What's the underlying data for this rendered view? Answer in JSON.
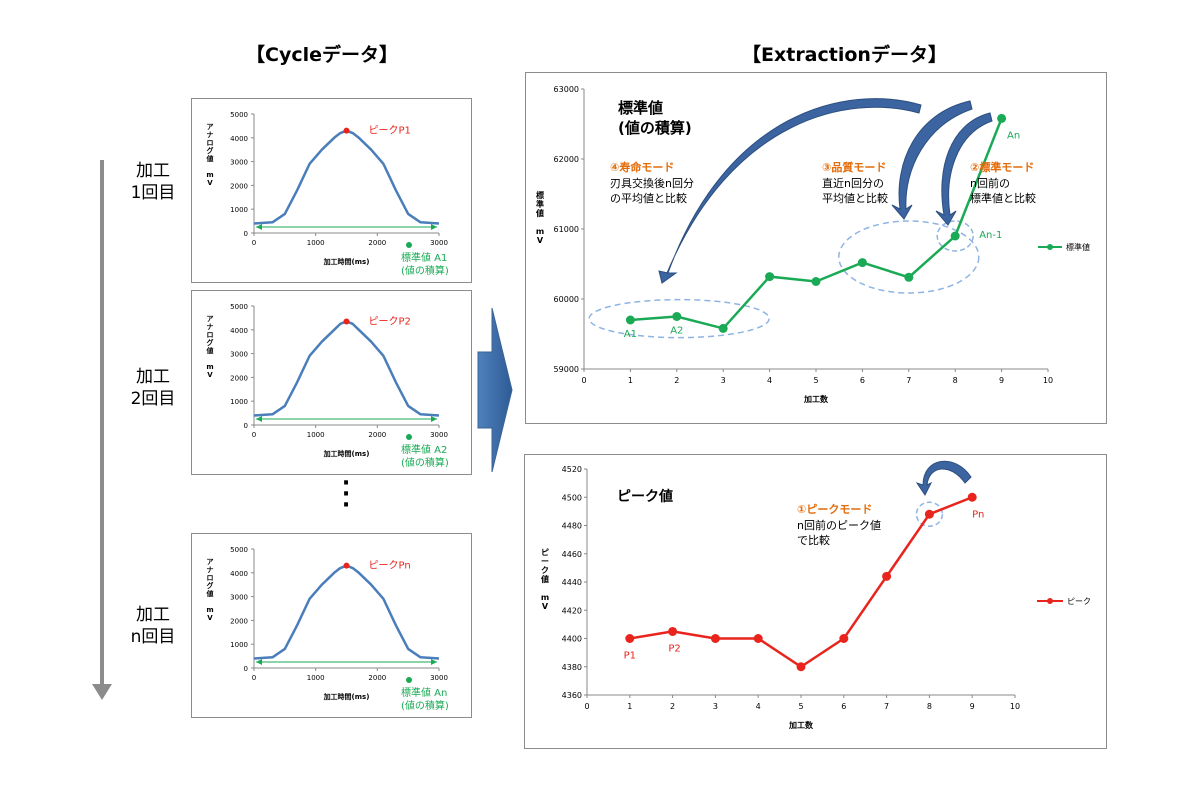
{
  "headers": {
    "cycle": "【Cycleデータ】",
    "extraction": "【Extractionデータ】"
  },
  "left_labels": [
    {
      "line1": "加工",
      "line2": "1回目"
    },
    {
      "line1": "加工",
      "line2": "2回目"
    },
    {
      "line1": "加工",
      "line2": "n回目"
    }
  ],
  "ellipsis": "⋮",
  "colors": {
    "cycle_line": "#4a7ebb",
    "std_line": "#1aaa55",
    "peak_line": "#e8241c",
    "mode_text": "#e46c0a",
    "arrow": "#3c64a0",
    "dashed": "#8fb4e3"
  },
  "chart_data": [
    {
      "id": "cycle1",
      "type": "line",
      "ylabel": "アナログ値 mV",
      "xlabel": "加工時間(ms)",
      "xlim": [
        0,
        3000
      ],
      "ylim": [
        0,
        5000
      ],
      "xticks": [
        0,
        1000,
        2000,
        3000
      ],
      "yticks": [
        0,
        1000,
        2000,
        3000,
        4000,
        5000
      ],
      "x": [
        0,
        300,
        500,
        700,
        900,
        1100,
        1300,
        1400,
        1500,
        1600,
        1700,
        1900,
        2100,
        2300,
        2500,
        2700,
        3000
      ],
      "y": [
        400,
        450,
        800,
        1800,
        2900,
        3500,
        4000,
        4200,
        4300,
        4200,
        4000,
        3500,
        2900,
        1800,
        800,
        450,
        400
      ],
      "peak_label": "ピークP1",
      "std_label": "標準値 A1",
      "std_note": "(値の積算)"
    },
    {
      "id": "cycle2",
      "type": "line",
      "ylabel": "アナログ値 mV",
      "xlabel": "加工時間(ms)",
      "xlim": [
        0,
        3000
      ],
      "ylim": [
        0,
        5000
      ],
      "xticks": [
        0,
        1000,
        2000,
        3000
      ],
      "yticks": [
        0,
        1000,
        2000,
        3000,
        4000,
        5000
      ],
      "x": [
        0,
        300,
        500,
        700,
        900,
        1100,
        1300,
        1400,
        1500,
        1600,
        1700,
        1900,
        2100,
        2300,
        2500,
        2700,
        3000
      ],
      "y": [
        400,
        450,
        800,
        1800,
        2900,
        3500,
        4000,
        4250,
        4350,
        4250,
        4000,
        3500,
        2900,
        1800,
        800,
        450,
        400
      ],
      "peak_label": "ピークP2",
      "std_label": "標準値 A2",
      "std_note": "(値の積算)"
    },
    {
      "id": "cyclen",
      "type": "line",
      "ylabel": "アナログ値 mV",
      "xlabel": "加工時間(ms)",
      "xlim": [
        0,
        3000
      ],
      "ylim": [
        0,
        5000
      ],
      "xticks": [
        0,
        1000,
        2000,
        3000
      ],
      "yticks": [
        0,
        1000,
        2000,
        3000,
        4000,
        5000
      ],
      "x": [
        0,
        300,
        500,
        700,
        900,
        1100,
        1300,
        1400,
        1500,
        1600,
        1700,
        1900,
        2100,
        2300,
        2500,
        2700,
        3000
      ],
      "y": [
        400,
        450,
        800,
        1800,
        2900,
        3500,
        4000,
        4200,
        4300,
        4200,
        4000,
        3500,
        2900,
        1800,
        800,
        450,
        400
      ],
      "peak_label": "ピークPn",
      "std_label": "標準値 An",
      "std_note": "(値の積算)"
    },
    {
      "id": "standard",
      "type": "line",
      "title": "標準値",
      "subtitle": "(値の積算)",
      "ylabel": "標準値 mV",
      "xlabel": "加工数",
      "xlim": [
        0,
        10
      ],
      "ylim": [
        59000,
        63000
      ],
      "xticks": [
        0,
        1,
        2,
        3,
        4,
        5,
        6,
        7,
        8,
        9,
        10
      ],
      "yticks": [
        59000,
        60000,
        61000,
        62000,
        63000
      ],
      "x": [
        1,
        2,
        3,
        4,
        5,
        6,
        7,
        8,
        9
      ],
      "y": [
        59700,
        59750,
        59580,
        60320,
        60250,
        60520,
        60310,
        60900,
        62580
      ],
      "legend": "標準値",
      "point_labels": {
        "A1": 1,
        "A2": 2,
        "An-1": 8,
        "An": 9
      },
      "annotations": [
        {
          "mode": "④寿命モード",
          "line1": "刃具交換後n回分",
          "line2": "の平均値と比較"
        },
        {
          "mode": "③品質モード",
          "line1": "直近n回分の",
          "line2": "平均値と比較"
        },
        {
          "mode": "②標準モード",
          "line1": "n回前の",
          "line2": "標準値と比較"
        }
      ]
    },
    {
      "id": "peak",
      "type": "line",
      "title": "ピーク値",
      "ylabel": "ピーク値 mV",
      "xlabel": "加工数",
      "xlim": [
        0,
        10
      ],
      "ylim": [
        4360,
        4520
      ],
      "xticks": [
        0,
        1,
        2,
        3,
        4,
        5,
        6,
        7,
        8,
        9,
        10
      ],
      "yticks": [
        4360,
        4380,
        4400,
        4420,
        4440,
        4460,
        4480,
        4500,
        4520
      ],
      "x": [
        1,
        2,
        3,
        4,
        5,
        6,
        7,
        8,
        9
      ],
      "y": [
        4400,
        4405,
        4400,
        4400,
        4380,
        4400,
        4444,
        4488,
        4500
      ],
      "legend": "ピーク",
      "point_labels": {
        "P1": 1,
        "P2": 2,
        "Pn": 9
      },
      "annotations": [
        {
          "mode": "①ピークモード",
          "line1": "n回前のピーク値",
          "line2": "で比較"
        }
      ]
    }
  ]
}
